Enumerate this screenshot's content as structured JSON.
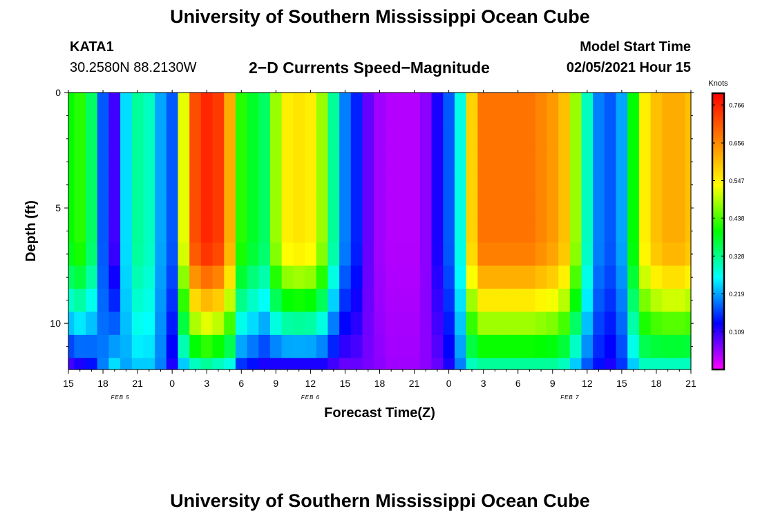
{
  "header": {
    "title": "University of Southern Mississippi Ocean Cube",
    "footer_title": "University of Southern Mississippi Ocean Cube",
    "station_id": "KATA1",
    "coordinates": "30.2580N 88.2130W",
    "model_start_label": "Model Start Time",
    "model_start_value": "02/05/2021 Hour 15"
  },
  "chart_data": {
    "type": "heatmap",
    "title": "2−D Currents Speed−Magnitude",
    "xlabel": "Forecast Time(Z)",
    "ylabel": "Depth (ft)",
    "colorbar_label": "Knots",
    "x_range_hours": [
      0,
      54
    ],
    "y_range_ft": [
      0,
      12
    ],
    "x_ticks": [
      {
        "hour": 0,
        "label": "15"
      },
      {
        "hour": 3,
        "label": "18"
      },
      {
        "hour": 6,
        "label": "21"
      },
      {
        "hour": 9,
        "label": "0"
      },
      {
        "hour": 12,
        "label": "3"
      },
      {
        "hour": 15,
        "label": "6"
      },
      {
        "hour": 18,
        "label": "9"
      },
      {
        "hour": 21,
        "label": "12"
      },
      {
        "hour": 24,
        "label": "15"
      },
      {
        "hour": 27,
        "label": "18"
      },
      {
        "hour": 30,
        "label": "21"
      },
      {
        "hour": 33,
        "label": "0"
      },
      {
        "hour": 36,
        "label": "3"
      },
      {
        "hour": 39,
        "label": "6"
      },
      {
        "hour": 42,
        "label": "9"
      },
      {
        "hour": 45,
        "label": "12"
      },
      {
        "hour": 48,
        "label": "15"
      },
      {
        "hour": 51,
        "label": "18"
      },
      {
        "hour": 54,
        "label": "21"
      }
    ],
    "date_labels": [
      {
        "hour": 4.5,
        "label": "FEB 5"
      },
      {
        "hour": 21,
        "label": "FEB 6"
      },
      {
        "hour": 43.5,
        "label": "FEB 7"
      }
    ],
    "y_ticks": [
      {
        "depth": 0,
        "label": "0"
      },
      {
        "depth": 5,
        "label": "5"
      },
      {
        "depth": 10,
        "label": "10"
      }
    ],
    "colorbar": {
      "min": 0.0,
      "max": 0.8,
      "ticks": [
        {
          "value": 0.766,
          "label": "0.766"
        },
        {
          "value": 0.656,
          "label": "0.656"
        },
        {
          "value": 0.547,
          "label": "0.547"
        },
        {
          "value": 0.438,
          "label": "0.438"
        },
        {
          "value": 0.328,
          "label": "0.328"
        },
        {
          "value": 0.219,
          "label": "0.219"
        },
        {
          "value": 0.109,
          "label": "0.109"
        }
      ]
    },
    "palette": [
      "#ff00ff",
      "#0000ff",
      "#00ffff",
      "#00ff00",
      "#ffff00",
      "#ff8000",
      "#ff0000"
    ],
    "depth_levels": [
      0,
      1,
      2,
      3,
      4,
      5,
      6,
      7,
      8,
      9,
      10,
      11,
      12
    ],
    "time_step_hours": 1,
    "surface_speed_knots": [
      0.4,
      0.42,
      0.35,
      0.18,
      0.1,
      0.25,
      0.32,
      0.3,
      0.22,
      0.18,
      0.52,
      0.72,
      0.76,
      0.74,
      0.62,
      0.42,
      0.38,
      0.35,
      0.48,
      0.55,
      0.56,
      0.55,
      0.48,
      0.32,
      0.2,
      0.15,
      0.08,
      0.05,
      0.04,
      0.04,
      0.04,
      0.06,
      0.12,
      0.18,
      0.28,
      0.58,
      0.68,
      0.68,
      0.68,
      0.68,
      0.68,
      0.66,
      0.64,
      0.6,
      0.48,
      0.3,
      0.2,
      0.18,
      0.22,
      0.4,
      0.55,
      0.6,
      0.62,
      0.62,
      0.6
    ],
    "bottom_speed_knots": [
      0.1,
      0.12,
      0.14,
      0.2,
      0.25,
      0.22,
      0.24,
      0.24,
      0.2,
      0.12,
      0.24,
      0.3,
      0.32,
      0.3,
      0.28,
      0.16,
      0.14,
      0.12,
      0.12,
      0.12,
      0.12,
      0.12,
      0.12,
      0.1,
      0.08,
      0.08,
      0.07,
      0.06,
      0.05,
      0.05,
      0.05,
      0.06,
      0.08,
      0.12,
      0.2,
      0.3,
      0.32,
      0.32,
      0.32,
      0.32,
      0.32,
      0.32,
      0.32,
      0.3,
      0.24,
      0.18,
      0.14,
      0.12,
      0.16,
      0.24,
      0.3,
      0.3,
      0.3,
      0.3,
      0.3
    ],
    "speed_knots_by_depth_ft": "interpolated from surface to bottom profiles per hour"
  }
}
